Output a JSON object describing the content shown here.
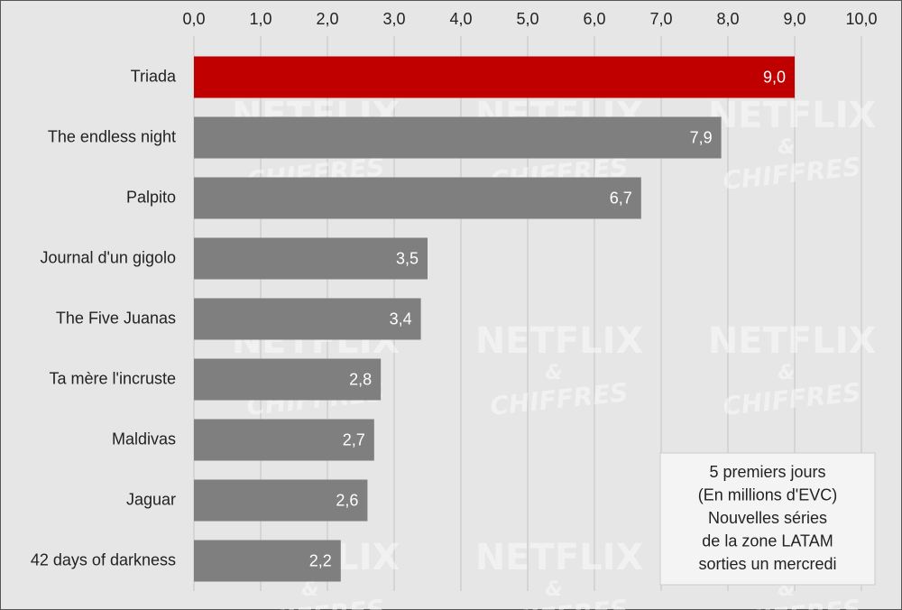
{
  "chart_data": {
    "type": "bar",
    "orientation": "horizontal",
    "categories": [
      "Triada",
      "The endless night",
      "Palpito",
      "Journal d'un gigolo",
      "The Five Juanas",
      "Ta mère l'incruste",
      "Maldivas",
      "Jaguar",
      "42 days of darkness"
    ],
    "values": [
      9.0,
      7.9,
      6.7,
      3.5,
      3.4,
      2.8,
      2.7,
      2.6,
      2.2
    ],
    "value_labels": [
      "9,0",
      "7,9",
      "6,7",
      "3,5",
      "3,4",
      "2,8",
      "2,7",
      "2,6",
      "2,2"
    ],
    "colors": [
      "#c00000",
      "#7f7f7f",
      "#7f7f7f",
      "#7f7f7f",
      "#7f7f7f",
      "#7f7f7f",
      "#7f7f7f",
      "#7f7f7f",
      "#7f7f7f"
    ],
    "xlim": [
      0,
      10
    ],
    "xticks": [
      {
        "value": 0,
        "label": "0,0"
      },
      {
        "value": 1,
        "label": "1,0"
      },
      {
        "value": 2,
        "label": "2,0"
      },
      {
        "value": 3,
        "label": "3,0"
      },
      {
        "value": 4,
        "label": "4,0"
      },
      {
        "value": 5,
        "label": "5,0"
      },
      {
        "value": 6,
        "label": "6,0"
      },
      {
        "value": 7,
        "label": "7,0"
      },
      {
        "value": 8,
        "label": "8,0"
      },
      {
        "value": 9,
        "label": "9,0"
      },
      {
        "value": 10,
        "label": "10,0"
      }
    ],
    "grid": true,
    "annotation": [
      "5 premiers jours",
      "(En millions d'EVC)",
      "Nouvelles séries",
      "de la zone LATAM",
      "sorties un mercredi"
    ],
    "watermark": [
      "NETFLIX",
      "&",
      "CHIFFRES"
    ]
  }
}
